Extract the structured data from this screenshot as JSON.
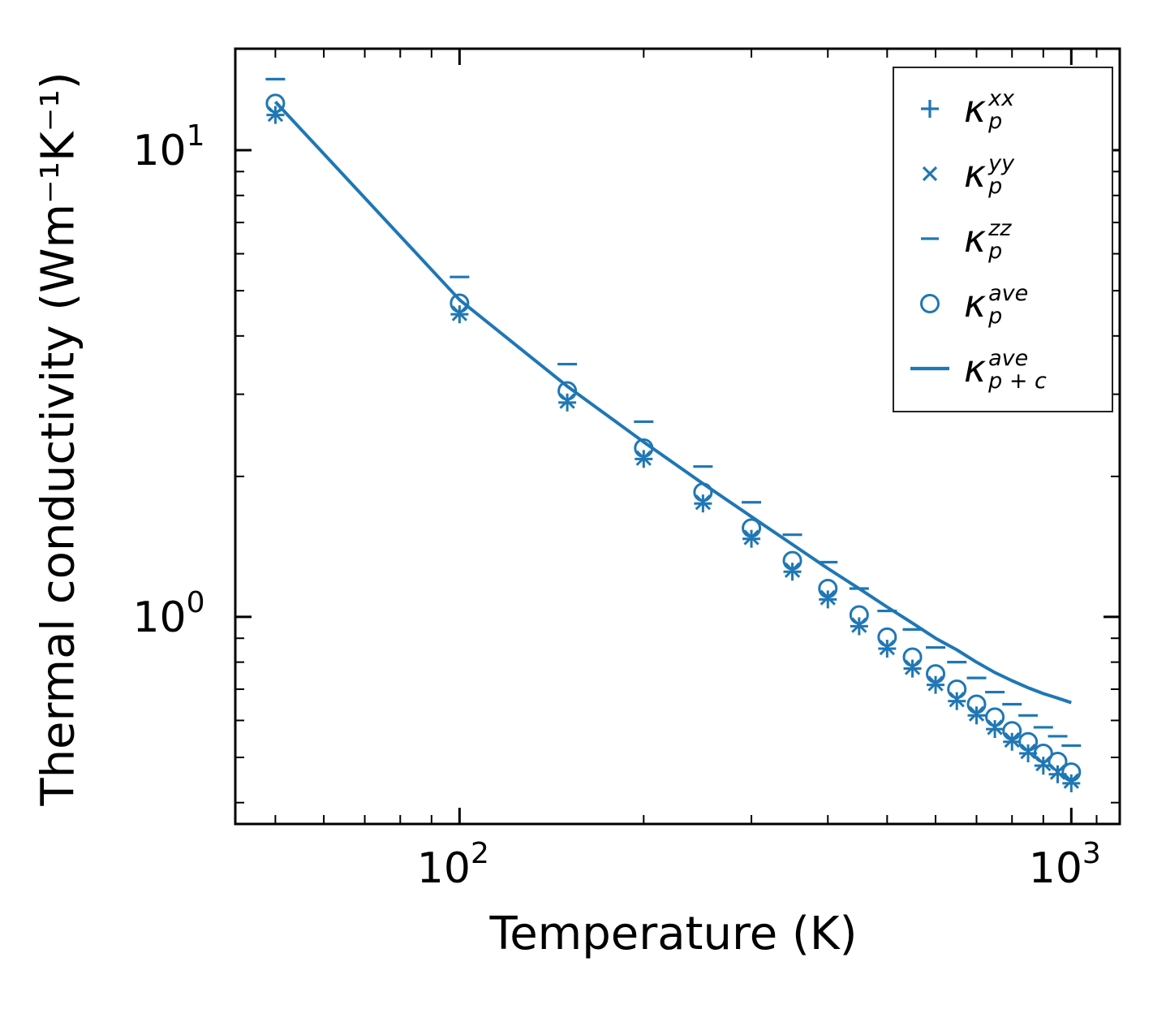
{
  "colors": {
    "accent": "#1f77b4",
    "axis": "#000000",
    "background": "#ffffff"
  },
  "chart_data": {
    "type": "line",
    "title": "",
    "xlabel": "Temperature (K)",
    "ylabel": "Thermal conductivity (Wm⁻¹K⁻¹)",
    "x_scale": "log",
    "y_scale": "log",
    "xlim": [
      43,
      1200
    ],
    "ylim": [
      0.36,
      16.5
    ],
    "grid": false,
    "legend_position": "upper right",
    "x_ticks": [
      {
        "v": 100,
        "base": "10",
        "exp": "2"
      },
      {
        "v": 1000,
        "base": "10",
        "exp": "3"
      }
    ],
    "x_minor_ticks": [
      50,
      60,
      70,
      80,
      90,
      200,
      300,
      400,
      500,
      600,
      700,
      800,
      900,
      1100
    ],
    "y_ticks": [
      {
        "v": 1,
        "base": "10",
        "exp": "0"
      },
      {
        "v": 10,
        "base": "10",
        "exp": "1"
      }
    ],
    "y_minor_ticks": [
      0.4,
      0.5,
      0.6,
      0.7,
      0.8,
      0.9,
      2,
      3,
      4,
      5,
      6,
      7,
      8,
      9
    ],
    "x": [
      50,
      100,
      150,
      200,
      250,
      300,
      350,
      400,
      450,
      500,
      550,
      600,
      650,
      700,
      750,
      800,
      850,
      900,
      950,
      1000
    ],
    "series": [
      {
        "name": "kappa_p_xx",
        "marker": "plus",
        "line": false,
        "values": [
          11.9,
          4.45,
          2.88,
          2.18,
          1.75,
          1.47,
          1.25,
          1.09,
          0.955,
          0.855,
          0.775,
          0.715,
          0.66,
          0.615,
          0.575,
          0.54,
          0.51,
          0.48,
          0.46,
          0.44
        ]
      },
      {
        "name": "kappa_p_yy",
        "marker": "x",
        "line": false,
        "values": [
          11.95,
          4.47,
          2.9,
          2.19,
          1.76,
          1.48,
          1.26,
          1.1,
          0.96,
          0.86,
          0.78,
          0.72,
          0.665,
          0.62,
          0.58,
          0.545,
          0.515,
          0.485,
          0.465,
          0.445
        ]
      },
      {
        "name": "kappa_p_zz",
        "marker": "hline",
        "line": false,
        "values": [
          14.2,
          5.35,
          3.48,
          2.62,
          2.1,
          1.76,
          1.5,
          1.31,
          1.15,
          1.03,
          0.94,
          0.86,
          0.8,
          0.74,
          0.69,
          0.65,
          0.615,
          0.58,
          0.555,
          0.53
        ]
      },
      {
        "name": "kappa_p_ave",
        "marker": "circle",
        "line": false,
        "values": [
          12.6,
          4.7,
          3.05,
          2.3,
          1.85,
          1.55,
          1.32,
          1.15,
          1.01,
          0.905,
          0.82,
          0.755,
          0.7,
          0.65,
          0.61,
          0.57,
          0.54,
          0.51,
          0.49,
          0.465
        ]
      },
      {
        "name": "kappa_p_plus_c_ave",
        "marker": "none",
        "line": true,
        "values": [
          12.7,
          4.78,
          3.12,
          2.37,
          1.93,
          1.64,
          1.43,
          1.27,
          1.15,
          1.05,
          0.97,
          0.9,
          0.85,
          0.8,
          0.76,
          0.73,
          0.705,
          0.685,
          0.67,
          0.655
        ]
      }
    ]
  },
  "legend": {
    "items": [
      {
        "kappa": "κ",
        "sup": "xx",
        "sub": "p",
        "marker": "plus"
      },
      {
        "kappa": "κ",
        "sup": "yy",
        "sub": "p",
        "marker": "x"
      },
      {
        "kappa": "κ",
        "sup": "zz",
        "sub": "p",
        "marker": "hline"
      },
      {
        "kappa": "κ",
        "sup": "ave",
        "sub": "p",
        "marker": "circle"
      },
      {
        "kappa": "κ",
        "sup": "ave",
        "sub": "p + c",
        "marker": "line"
      }
    ]
  }
}
